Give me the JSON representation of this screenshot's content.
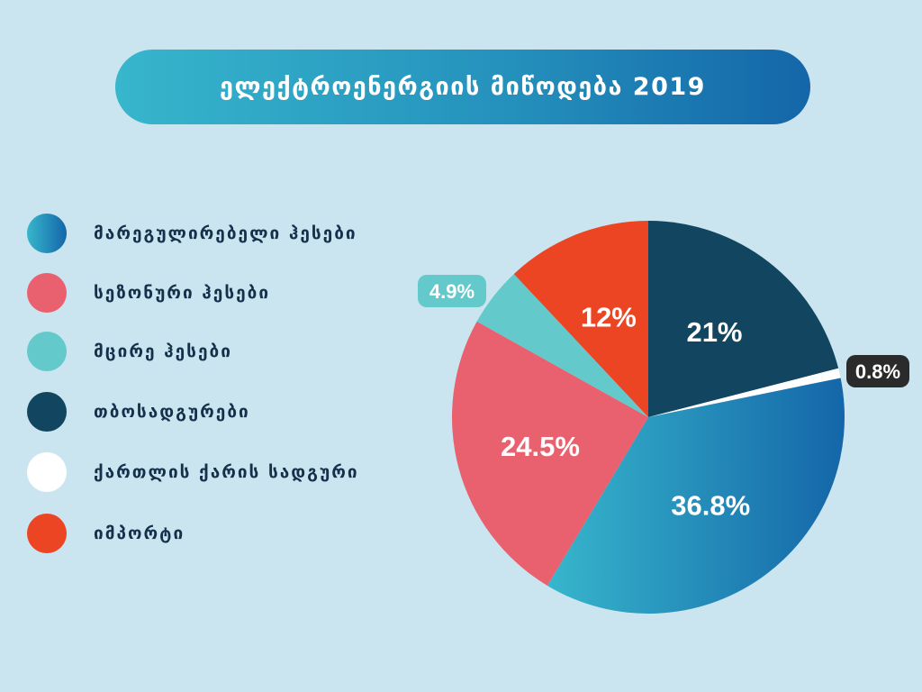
{
  "header": {
    "title": "ელექტროენერგიის მიწოდება 2019"
  },
  "legend": [
    {
      "label": "მარეგულირებელი ჰესები",
      "color_start": "#37b6cc",
      "color_end": "#1466a8"
    },
    {
      "label": "სეზონური ჰესები",
      "color": "#e9616e"
    },
    {
      "label": "მცირე ჰესები",
      "color": "#63c9cb"
    },
    {
      "label": "თბოსადგურები",
      "color": "#12455f"
    },
    {
      "label": "ქართლის ქარის სადგური",
      "color": "#ffffff"
    },
    {
      "label": "იმპორტი",
      "color": "#ec4524"
    }
  ],
  "chart_data": {
    "type": "pie",
    "title": "ელექტროენერგიის მიწოდება 2019",
    "slices": [
      {
        "name": "თბოსადგურები",
        "value": 21,
        "label": "21%",
        "color": "#12455f"
      },
      {
        "name": "ქართლის ქარის სადგური",
        "value": 0.8,
        "label": "0.8%",
        "color": "#ffffff"
      },
      {
        "name": "მარეგულირებელი ჰესები",
        "value": 36.8,
        "label": "36.8%",
        "color": "#1f86bd"
      },
      {
        "name": "სეზონური ჰესები",
        "value": 24.5,
        "label": "24.5%",
        "color": "#e9616e"
      },
      {
        "name": "მცირე ჰესები",
        "value": 4.9,
        "label": "4.9%",
        "color": "#63c9cb"
      },
      {
        "name": "იმპორტი",
        "value": 12,
        "label": "12%",
        "color": "#ec4524"
      }
    ],
    "start_angle": "12 o'clock",
    "direction": "clockwise",
    "legend_position": "left"
  }
}
